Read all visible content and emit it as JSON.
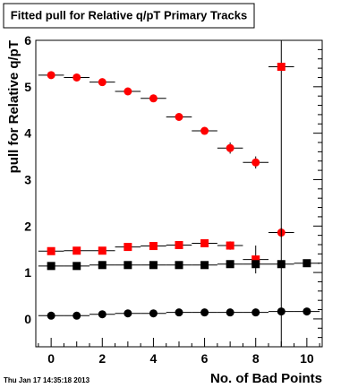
{
  "timestamp": "Thu Jan 17 14:35:18 2013",
  "chart_data": {
    "type": "scatter",
    "title": "Fitted pull for Relative q/pT Primary Tracks",
    "xlabel": "No. of Bad Points",
    "ylabel": "pull for Relative q/pT",
    "xlim": [
      -0.6,
      10.6
    ],
    "ylim": [
      -0.6,
      6.0
    ],
    "x_ticks": [
      0,
      2,
      4,
      6,
      8,
      10
    ],
    "y_ticks": [
      0,
      1,
      2,
      3,
      4,
      5,
      6
    ],
    "grid": false,
    "legend": "none",
    "series": [
      {
        "marker": "circle",
        "color": "#ff0000",
        "x": [
          0,
          1,
          2,
          3,
          4,
          5,
          6,
          7,
          8,
          9
        ],
        "y": [
          5.25,
          5.2,
          5.1,
          4.9,
          4.75,
          4.35,
          4.05,
          3.68,
          3.37,
          1.86
        ],
        "yerr": [
          0.03,
          0.03,
          0.04,
          0.05,
          0.06,
          0.06,
          0.07,
          0.12,
          0.13,
          0.1
        ]
      },
      {
        "marker": "square",
        "color": "#ff0000",
        "x": [
          0,
          1,
          2,
          3,
          4,
          5,
          6,
          7,
          8,
          9
        ],
        "y": [
          1.46,
          1.47,
          1.47,
          1.55,
          1.57,
          1.59,
          1.63,
          1.58,
          1.28,
          5.43
        ],
        "yerr": [
          0.03,
          0.03,
          0.03,
          0.04,
          0.04,
          0.05,
          0.06,
          0.09,
          0.3,
          6.5
        ]
      },
      {
        "marker": "square",
        "color": "#000000",
        "x": [
          0,
          1,
          2,
          3,
          4,
          5,
          6,
          7,
          8,
          9,
          10
        ],
        "y": [
          1.14,
          1.14,
          1.16,
          1.16,
          1.16,
          1.16,
          1.16,
          1.18,
          1.18,
          1.18,
          1.2
        ],
        "yerr": [
          0.02,
          0.02,
          0.02,
          0.02,
          0.02,
          0.02,
          0.02,
          0.02,
          0.03,
          0.03,
          0.03
        ]
      },
      {
        "marker": "circle",
        "color": "#000000",
        "x": [
          0,
          1,
          2,
          3,
          4,
          5,
          6,
          7,
          8,
          9,
          10
        ],
        "y": [
          0.07,
          0.07,
          0.1,
          0.12,
          0.12,
          0.14,
          0.14,
          0.14,
          0.14,
          0.16,
          0.16
        ],
        "yerr": [
          0.02,
          0.02,
          0.02,
          0.02,
          0.02,
          0.02,
          0.02,
          0.02,
          0.02,
          0.02,
          0.02
        ]
      }
    ]
  }
}
